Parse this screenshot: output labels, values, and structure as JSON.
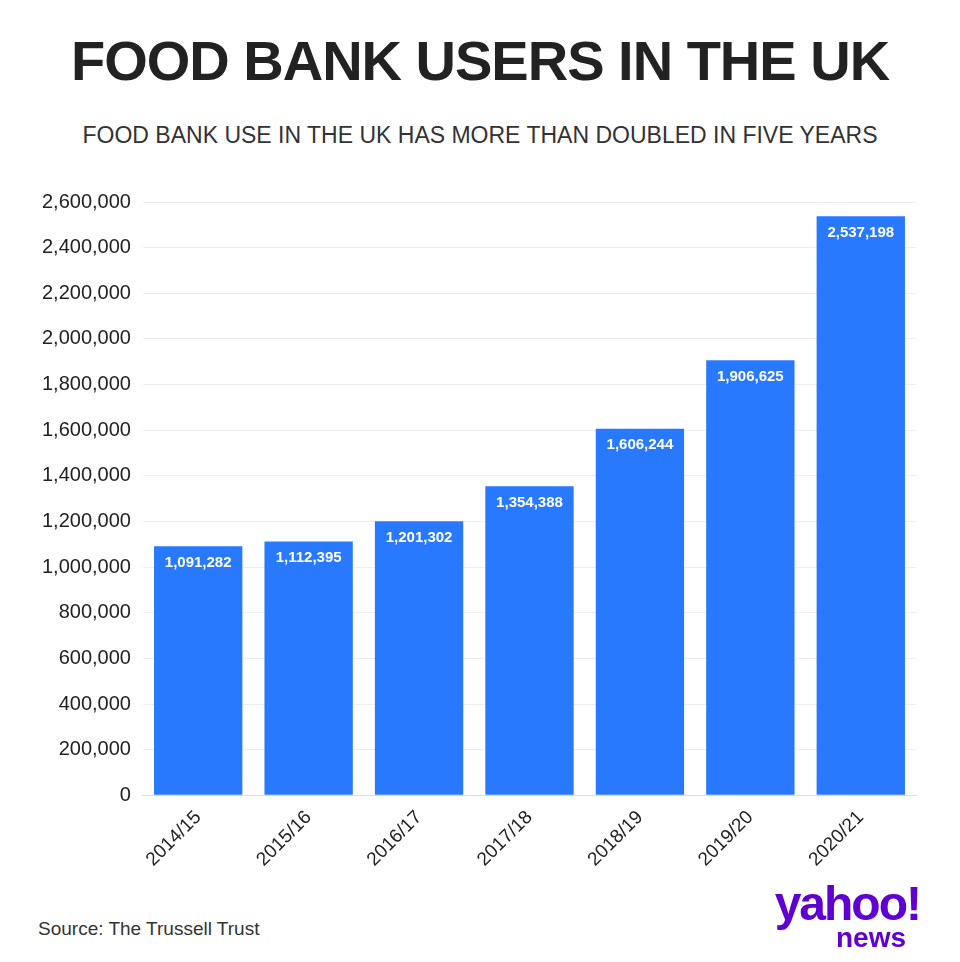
{
  "chart_data": {
    "type": "bar",
    "title": "FOOD BANK USERS IN THE UK",
    "subtitle": "FOOD BANK USE IN THE UK HAS MORE THAN DOUBLED IN FIVE YEARS",
    "source": "Source: The Trussell Trust",
    "logo": "yahoo!",
    "logo_subtext": "news",
    "categories": [
      "2014/15",
      "2015/16",
      "2016/17",
      "2017/18",
      "2018/19",
      "2019/20",
      "2020/21"
    ],
    "values": [
      1091282,
      1112395,
      1201302,
      1354388,
      1606244,
      1906625,
      2537198
    ],
    "value_labels": [
      "1,091,282",
      "1,112,395",
      "1,201,302",
      "1,354,388",
      "1,606,244",
      "1,906,625",
      "2,537,198"
    ],
    "data_labels": true,
    "color": "#2979ff",
    "ylim": [
      0,
      2600000
    ],
    "yticks": [
      0,
      {
        "value": 200000,
        "label": "200,000"
      },
      {
        "value": 400000,
        "label": "400,000"
      },
      {
        "value": 600000,
        "label": "600,000"
      },
      {
        "value": 800000,
        "label": "800,000"
      },
      {
        "value": 1000000,
        "label": "1,000,000"
      },
      {
        "value": 1200000,
        "label": "1,200,000"
      },
      {
        "value": 1400000,
        "label": "1,400,000"
      },
      {
        "value": 1600000,
        "label": "1,600,000"
      },
      {
        "value": 1800000,
        "label": "1,800,000"
      },
      {
        "value": 2000000,
        "label": "2,000,000"
      },
      {
        "value": 2200000,
        "label": "2,200,000"
      },
      {
        "value": 2400000,
        "label": "2,400,000"
      },
      {
        "value": 2600000,
        "label": "2,600,000"
      }
    ],
    "grid": true
  }
}
